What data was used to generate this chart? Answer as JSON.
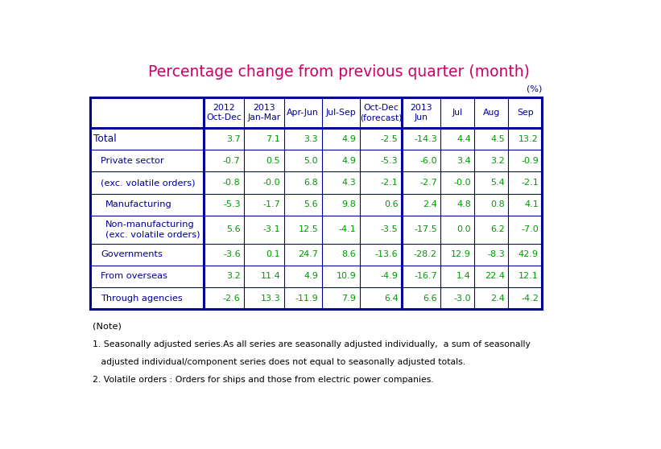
{
  "title": "Percentage change from previous quarter (month)",
  "title_color": "#CC0066",
  "unit_label": "(%)",
  "col_headers": [
    "2012\nOct-Dec",
    "2013\nJan-Mar",
    "Apr-Jun",
    "Jul-Sep",
    "Oct-Dec\n(forecast)",
    "2013\nJun",
    "Jul",
    "Aug",
    "Sep"
  ],
  "row_labels": [
    "Total",
    "Private sector",
    "(exc. volatile orders)",
    "Manufacturing",
    "Non-manufacturing\n(exc. volatile orders)",
    "Governments",
    "From overseas",
    "Through agencies"
  ],
  "row_indent": [
    0,
    1,
    1,
    2,
    2,
    1,
    1,
    1
  ],
  "data": [
    [
      "3.7",
      "7.1",
      "3.3",
      "4.9",
      "-2.5",
      "-14.3",
      "4.4",
      "4.5",
      "13.2"
    ],
    [
      "-0.7",
      "0.5",
      "5.0",
      "4.9",
      "-5.3",
      "-6.0",
      "3.4",
      "3.2",
      "-0.9"
    ],
    [
      "-0.8",
      "-0.0",
      "6.8",
      "4.3",
      "-2.1",
      "-2.7",
      "-0.0",
      "5.4",
      "-2.1"
    ],
    [
      "-5.3",
      "-1.7",
      "5.6",
      "9.8",
      "0.6",
      "2.4",
      "4.8",
      "0.8",
      "4.1"
    ],
    [
      "5.6",
      "-3.1",
      "12.5",
      "-4.1",
      "-3.5",
      "-17.5",
      "0.0",
      "6.2",
      "-7.0"
    ],
    [
      "-3.6",
      "0.1",
      "24.7",
      "8.6",
      "-13.6",
      "-28.2",
      "12.9",
      "-8.3",
      "42.9"
    ],
    [
      "3.2",
      "11.4",
      "4.9",
      "10.9",
      "-4.9",
      "-16.7",
      "1.4",
      "22.4",
      "12.1"
    ],
    [
      "-2.6",
      "13.3",
      "-11.9",
      "7.9",
      "6.4",
      "6.6",
      "-3.0",
      "2.4",
      "-4.2"
    ]
  ],
  "notes": [
    "(Note)",
    "1. Seasonally adjusted series.As all series are seasonally adjusted individually,  a sum of seasonally",
    "   adjusted individual/component series does not equal to seasonally adjusted totals.",
    "2. Volatile orders : Orders for ships and those from electric power companies."
  ],
  "border_color": "#000099",
  "header_text_color": "#000099",
  "label_color": "#000099",
  "data_color": "#009900",
  "note_color": "#000000",
  "background_color": "#FFFFFF"
}
